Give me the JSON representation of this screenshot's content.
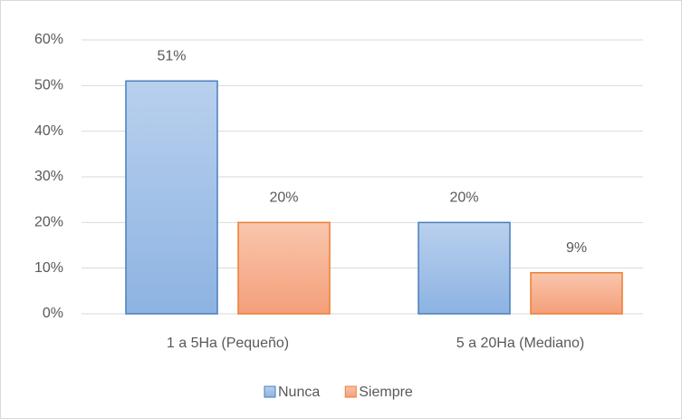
{
  "chart_data": {
    "type": "bar",
    "categories": [
      "1 a 5Ha (Pequeño)",
      "5 a 20Ha (Mediano)"
    ],
    "series": [
      {
        "name": "Nunca",
        "color": "#9dbde8",
        "values": [
          51,
          20
        ],
        "value_labels": [
          "51%",
          "20%"
        ]
      },
      {
        "name": "Siempre",
        "color": "#f6ad8c",
        "values": [
          20,
          9
        ],
        "value_labels": [
          "20%",
          "9%"
        ]
      }
    ],
    "ylim": [
      0,
      60
    ],
    "yticks": [
      {
        "value": 0,
        "label": "0%"
      },
      {
        "value": 10,
        "label": "10%"
      },
      {
        "value": 20,
        "label": "20%"
      },
      {
        "value": 30,
        "label": "30%"
      },
      {
        "value": 40,
        "label": "40%"
      },
      {
        "value": 50,
        "label": "50%"
      },
      {
        "value": 60,
        "label": "60%"
      }
    ],
    "grid": true,
    "legend": "bottom"
  }
}
